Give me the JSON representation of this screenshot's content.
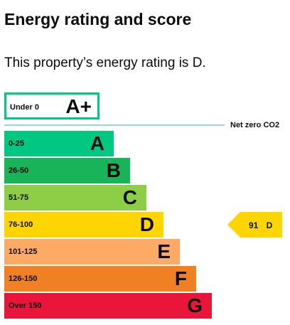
{
  "heading": "Energy rating and score",
  "summary": "This property’s energy rating is D.",
  "net_zero_label": "Net zero CO2",
  "bands": [
    {
      "range": "Under 0",
      "letter": "A+",
      "color": "#00c781"
    },
    {
      "range": "0-25",
      "letter": "A",
      "color": "#00c781"
    },
    {
      "range": "26-50",
      "letter": "B",
      "color": "#19b459"
    },
    {
      "range": "51-75",
      "letter": "C",
      "color": "#8dce46"
    },
    {
      "range": "76-100",
      "letter": "D",
      "color": "#ffd500"
    },
    {
      "range": "101-125",
      "letter": "E",
      "color": "#fcaa65"
    },
    {
      "range": "126-150",
      "letter": "F",
      "color": "#ef8023"
    },
    {
      "range": "Over 150",
      "letter": "G",
      "color": "#e9153b"
    }
  ],
  "current_rating": {
    "score": "91 D",
    "color": "#ffd500"
  }
}
